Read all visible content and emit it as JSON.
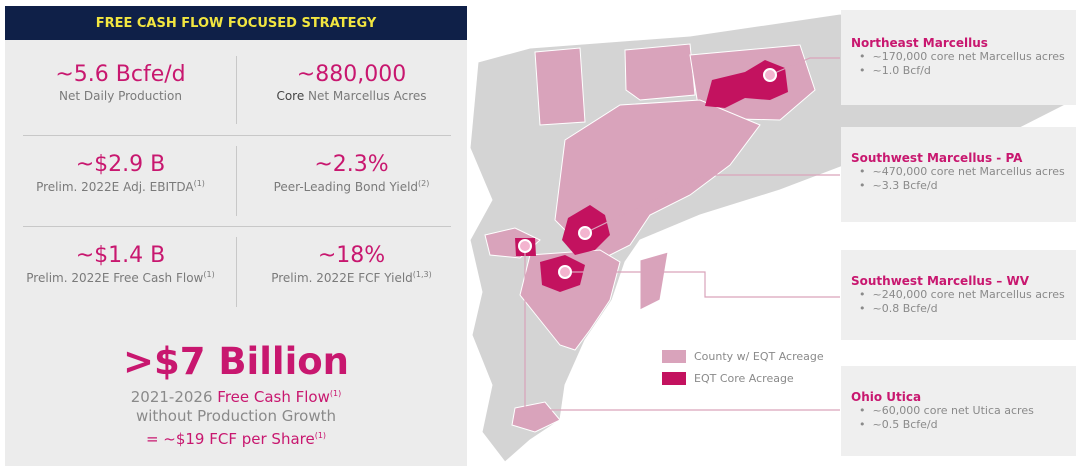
{
  "header": {
    "title": "FREE CASH FLOW FOCUSED STRATEGY"
  },
  "metrics": [
    {
      "value": "~5.6 Bcfe/d",
      "label": {
        "text": "Net Daily Production"
      }
    },
    {
      "value": "~880,000",
      "label": {
        "strong": "Core",
        "text": " Net Marcellus Acres"
      }
    },
    {
      "value": "~$2.9 B",
      "label": {
        "text": "Prelim. 2022E Adj. EBITDA",
        "sup": "(1)"
      }
    },
    {
      "value": "~2.3%",
      "label": {
        "text": "Peer-Leading Bond Yield",
        "sup": "(2)"
      }
    },
    {
      "value": "~$1.4 B",
      "label": {
        "text": "Prelim. 2022E Free Cash Flow",
        "sup": "(1)"
      }
    },
    {
      "value": "~18%",
      "label": {
        "text": "Prelim. 2022E FCF Yield",
        "sup": "(1,3)"
      }
    }
  ],
  "summary": {
    "headline": ">$7 Billion",
    "line1": {
      "text": "2021-2026 ",
      "highlight": "Free Cash Flow",
      "sup": "(1)"
    },
    "line2": "without Production Growth",
    "line3": {
      "text": "= ~$19 FCF per Share",
      "sup": "(1)"
    }
  },
  "legend": [
    "County w/ EQT Acreage",
    "EQT Core Acreage"
  ],
  "regions": [
    {
      "title": "Northeast Marcellus",
      "bullets": [
        "~170,000 core net Marcellus acres",
        "~1.0 Bcf/d"
      ]
    },
    {
      "title": "Southwest Marcellus - PA",
      "bullets": [
        "~470,000 core net Marcellus acres",
        "~3.3 Bcfe/d"
      ]
    },
    {
      "title": "Southwest Marcellus – WV",
      "bullets": [
        "~240,000 core net Marcellus acres",
        "~0.8 Bcfe/d"
      ]
    },
    {
      "title": "Ohio Utica",
      "bullets": [
        "~60,000 core net Utica acres",
        "~0.5 Bcfe/d"
      ]
    }
  ]
}
